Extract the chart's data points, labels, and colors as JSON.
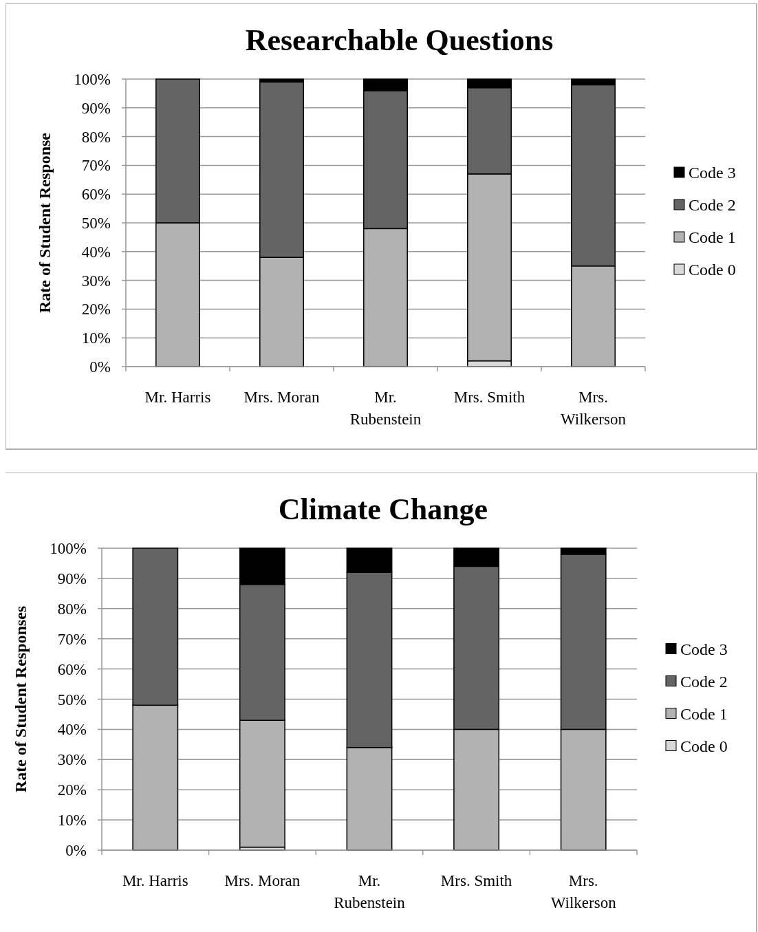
{
  "chart_data": [
    {
      "type": "bar",
      "title": "Researchable Questions",
      "ylabel": "Rate of Student Response",
      "stacked": true,
      "categories": [
        "Mr. Harris",
        "Mrs. Moran",
        "Mr. Rubenstein",
        "Mrs. Smith",
        "Mrs. Wilkerson"
      ],
      "series": [
        {
          "name": "Code 0",
          "color": "#d9d9d9",
          "values": [
            0,
            0,
            0,
            2,
            0
          ]
        },
        {
          "name": "Code 1",
          "color": "#b2b2b2",
          "values": [
            50,
            38,
            48,
            65,
            35
          ]
        },
        {
          "name": "Code 2",
          "color": "#646464",
          "values": [
            50,
            61,
            48,
            30,
            63
          ]
        },
        {
          "name": "Code 3",
          "color": "#000000",
          "values": [
            0,
            1,
            4,
            3,
            2
          ]
        }
      ],
      "ylim": [
        0,
        100
      ],
      "yticks": [
        {
          "value": 0,
          "label": "0%"
        },
        {
          "value": 10,
          "label": "10%"
        },
        {
          "value": 20,
          "label": "20%"
        },
        {
          "value": 30,
          "label": "30%"
        },
        {
          "value": 40,
          "label": "40%"
        },
        {
          "value": 50,
          "label": "50%"
        },
        {
          "value": 60,
          "label": "60%"
        },
        {
          "value": 70,
          "label": "70%"
        },
        {
          "value": 80,
          "label": "80%"
        },
        {
          "value": 90,
          "label": "90%"
        },
        {
          "value": 100,
          "label": "100%"
        }
      ],
      "grid": "y",
      "legend": "right"
    },
    {
      "type": "bar",
      "title": "Climate Change",
      "ylabel": "Rate of Student Responses",
      "stacked": true,
      "categories": [
        "Mr. Harris",
        "Mrs. Moran",
        "Mr. Rubenstein",
        "Mrs. Smith",
        "Mrs. Wilkerson"
      ],
      "series": [
        {
          "name": "Code 0",
          "color": "#d9d9d9",
          "values": [
            0,
            1,
            0,
            0,
            0
          ]
        },
        {
          "name": "Code 1",
          "color": "#b2b2b2",
          "values": [
            48,
            42,
            34,
            40,
            40
          ]
        },
        {
          "name": "Code 2",
          "color": "#646464",
          "values": [
            52,
            45,
            58,
            54,
            58
          ]
        },
        {
          "name": "Code 3",
          "color": "#000000",
          "values": [
            0,
            12,
            8,
            6,
            2
          ]
        }
      ],
      "ylim": [
        0,
        100
      ],
      "yticks": [
        {
          "value": 0,
          "label": "0%"
        },
        {
          "value": 10,
          "label": "10%"
        },
        {
          "value": 20,
          "label": "20%"
        },
        {
          "value": 30,
          "label": "30%"
        },
        {
          "value": 40,
          "label": "40%"
        },
        {
          "value": 50,
          "label": "50%"
        },
        {
          "value": 60,
          "label": "60%"
        },
        {
          "value": 70,
          "label": "70%"
        },
        {
          "value": 80,
          "label": "80%"
        },
        {
          "value": 90,
          "label": "90%"
        },
        {
          "value": 100,
          "label": "100%"
        }
      ],
      "grid": "y",
      "legend": "right"
    }
  ]
}
